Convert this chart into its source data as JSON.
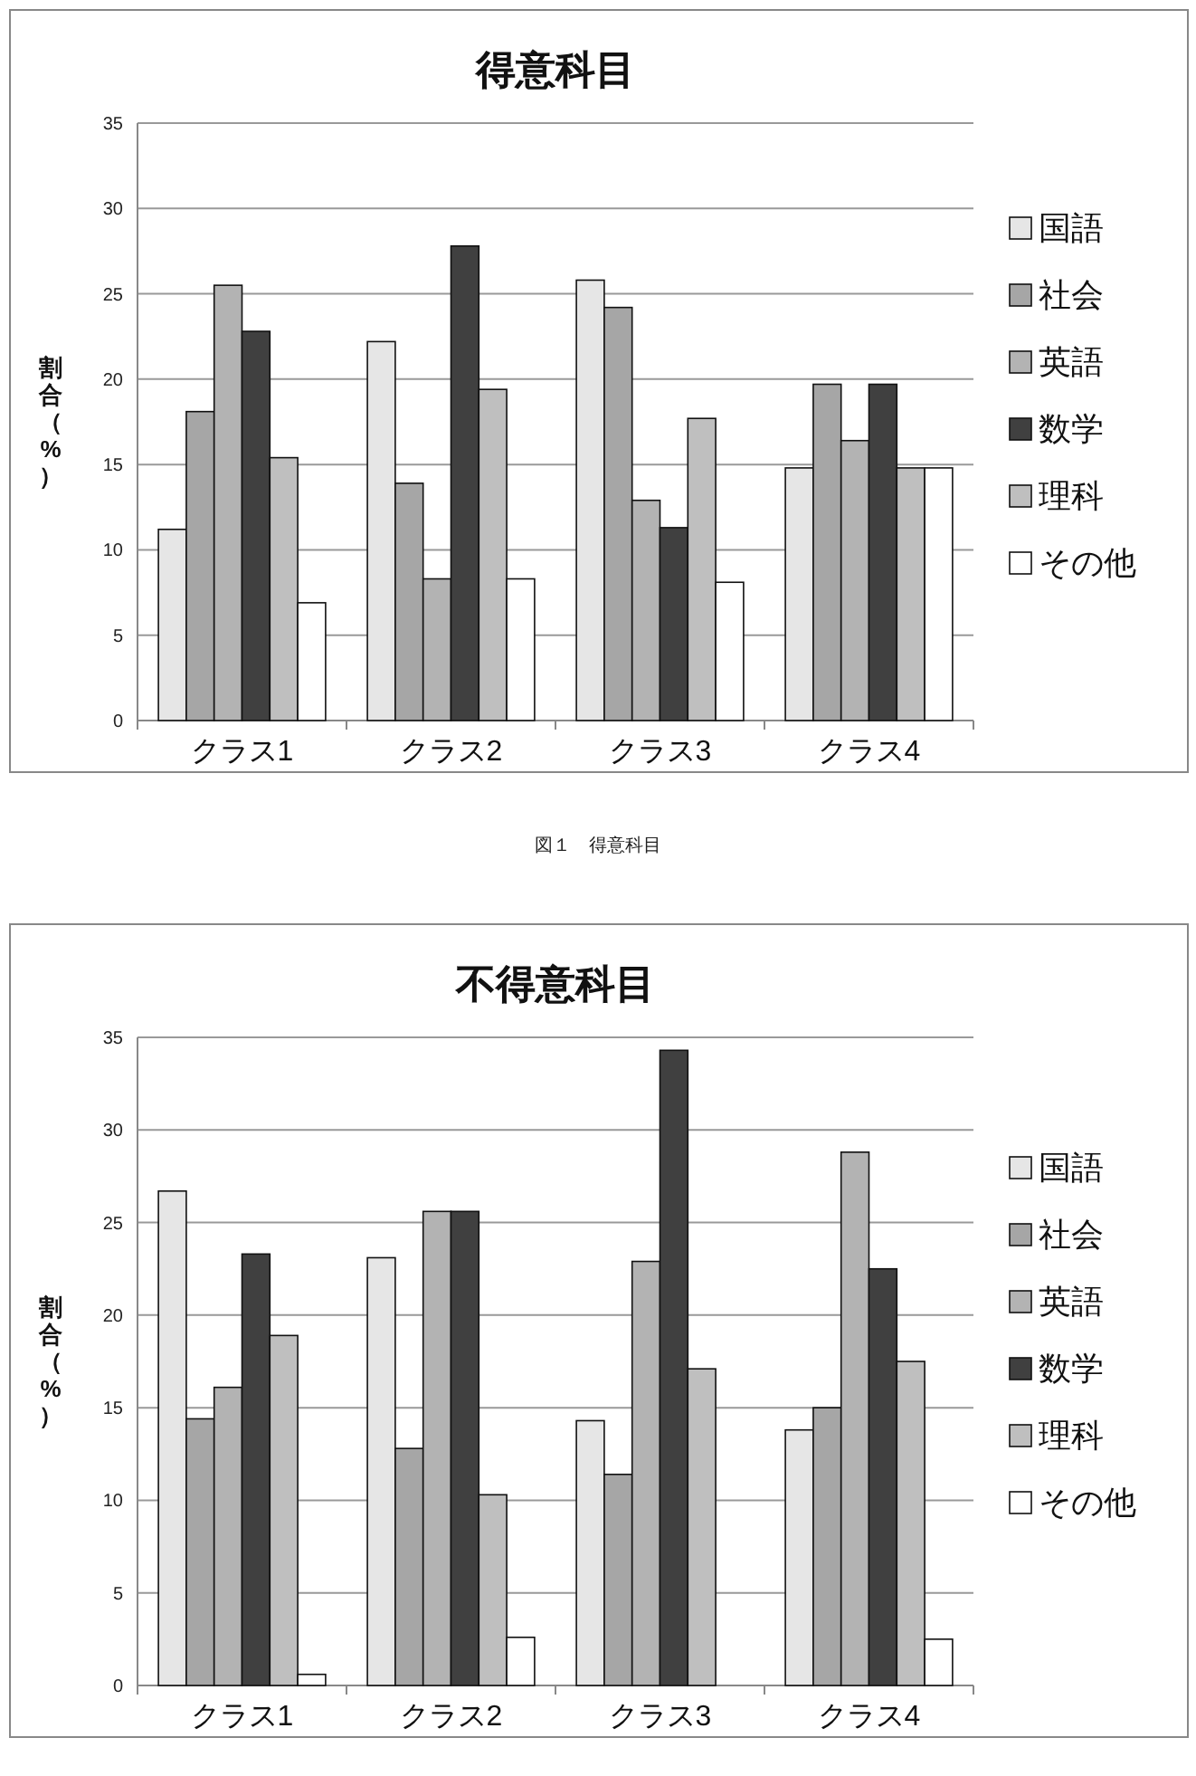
{
  "chart_data": [
    {
      "type": "bar",
      "title": "得意科目",
      "ylabel": "割合（%）",
      "categories": [
        "クラス1",
        "クラス2",
        "クラス3",
        "クラス4"
      ],
      "series": [
        {
          "name": "国語",
          "color": "#e6e6e6",
          "values": [
            11.2,
            22.2,
            25.8,
            14.8
          ]
        },
        {
          "name": "社会",
          "color": "#a6a6a6",
          "values": [
            18.1,
            13.9,
            24.2,
            19.7
          ]
        },
        {
          "name": "英語",
          "color": "#b3b3b3",
          "values": [
            25.5,
            8.3,
            12.9,
            16.4
          ]
        },
        {
          "name": "数学",
          "color": "#404040",
          "values": [
            22.8,
            27.8,
            11.3,
            19.7
          ]
        },
        {
          "name": "理科",
          "color": "#bfbfbf",
          "values": [
            15.4,
            19.4,
            17.7,
            14.8
          ]
        },
        {
          "name": "その他",
          "color": "#ffffff",
          "values": [
            6.9,
            8.3,
            8.1,
            14.8
          ]
        }
      ],
      "ylim": [
        0,
        35
      ],
      "yticks": [
        0,
        5,
        10,
        15,
        20,
        25,
        30,
        35
      ],
      "grid": "y",
      "legend": "right",
      "annotations": [
        "図１　得意科目"
      ]
    },
    {
      "type": "bar",
      "title": "不得意科目",
      "ylabel": "割合（%）",
      "categories": [
        "クラス1",
        "クラス2",
        "クラス3",
        "クラス4"
      ],
      "series": [
        {
          "name": "国語",
          "color": "#e6e6e6",
          "values": [
            26.7,
            23.1,
            14.3,
            13.8
          ]
        },
        {
          "name": "社会",
          "color": "#a6a6a6",
          "values": [
            14.4,
            12.8,
            11.4,
            15.0
          ]
        },
        {
          "name": "英語",
          "color": "#b3b3b3",
          "values": [
            16.1,
            25.6,
            22.9,
            28.8
          ]
        },
        {
          "name": "数学",
          "color": "#404040",
          "values": [
            23.3,
            25.6,
            34.3,
            22.5
          ]
        },
        {
          "name": "理科",
          "color": "#bfbfbf",
          "values": [
            18.9,
            10.3,
            17.1,
            17.5
          ]
        },
        {
          "name": "その他",
          "color": "#ffffff",
          "values": [
            0.6,
            2.6,
            0,
            2.5
          ]
        }
      ],
      "ylim": [
        0,
        35
      ],
      "yticks": [
        0,
        5,
        10,
        15,
        20,
        25,
        30,
        35
      ],
      "grid": "y",
      "legend": "right"
    }
  ]
}
